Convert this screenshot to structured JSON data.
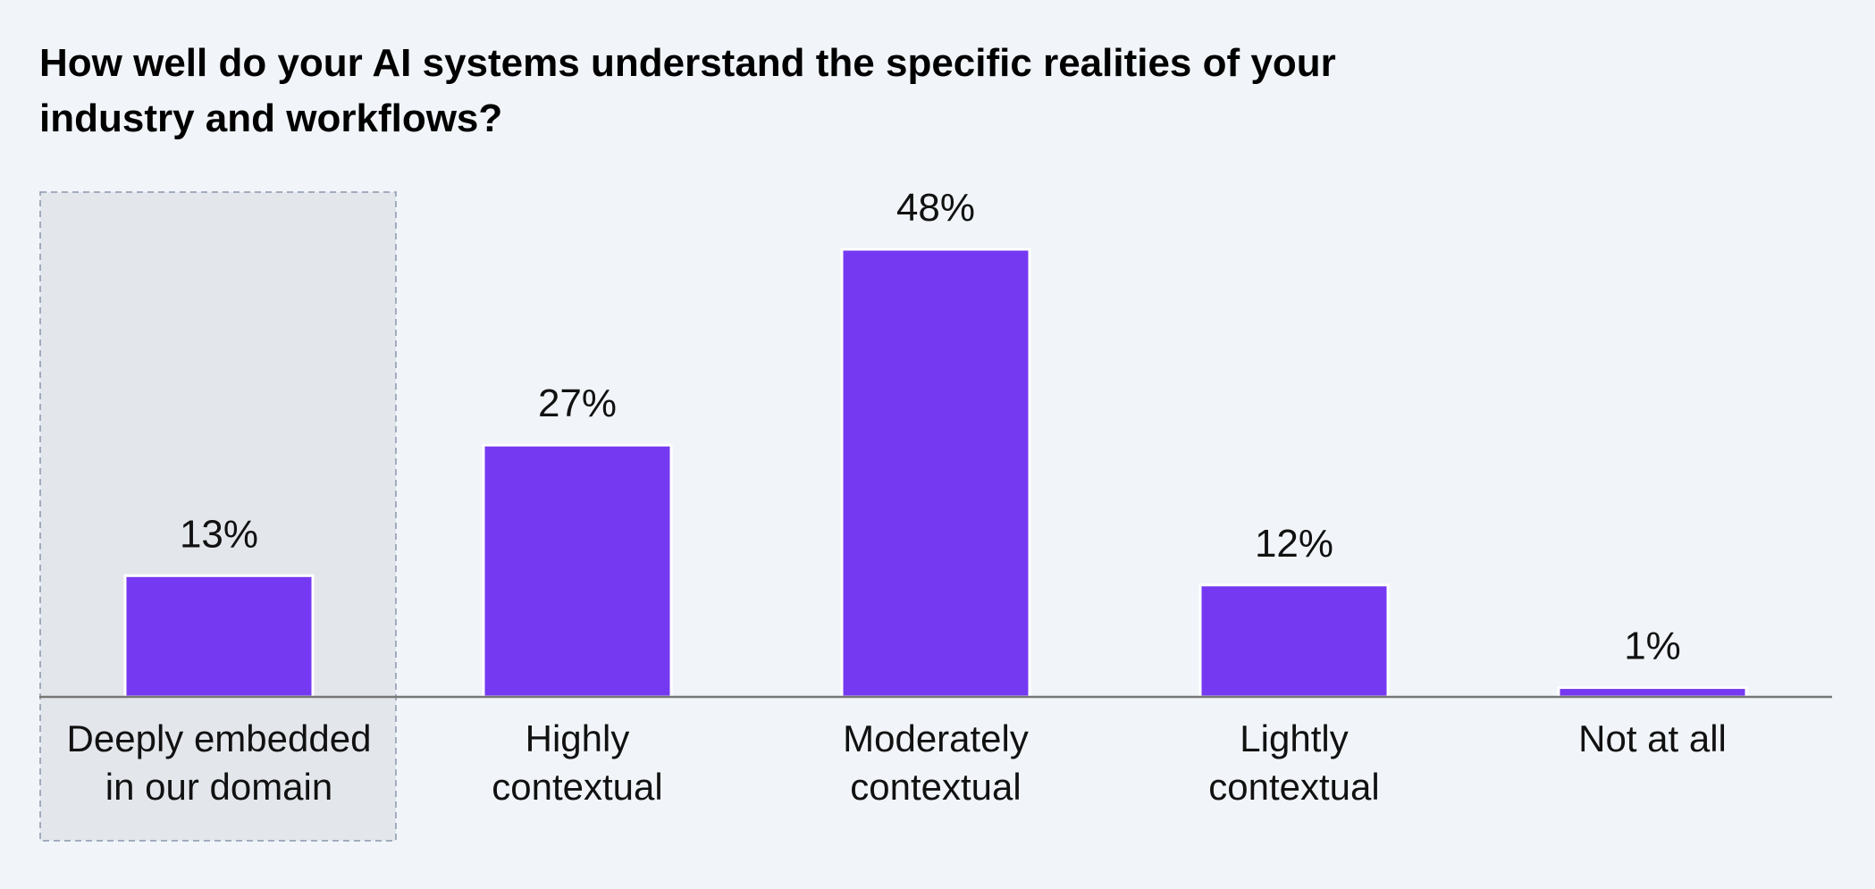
{
  "chart_data": {
    "type": "bar",
    "title": "How well do your AI systems understand the specific realities of your industry and workflows?",
    "categories": [
      [
        "Deeply embedded",
        "in our domain"
      ],
      [
        "Highly",
        "contextual"
      ],
      [
        "Moderately",
        "contextual"
      ],
      [
        "Lightly",
        "contextual"
      ],
      [
        "Not at all"
      ]
    ],
    "values": [
      13,
      27,
      48,
      12,
      1
    ],
    "value_labels": [
      "13%",
      "27%",
      "48%",
      "12%",
      "1%"
    ],
    "highlighted_category_index": 0,
    "xlabel": "",
    "ylabel": "",
    "ylim": [
      0,
      48
    ],
    "grid": false,
    "legend": "none",
    "colors": {
      "bar": "#7639f2",
      "bar_outline": "#ffffff",
      "highlight_fill": "#e3e7ec",
      "highlight_border": "#8a96ac",
      "axis": "#777777",
      "text": "#111111",
      "background": "#f1f5f9"
    }
  }
}
